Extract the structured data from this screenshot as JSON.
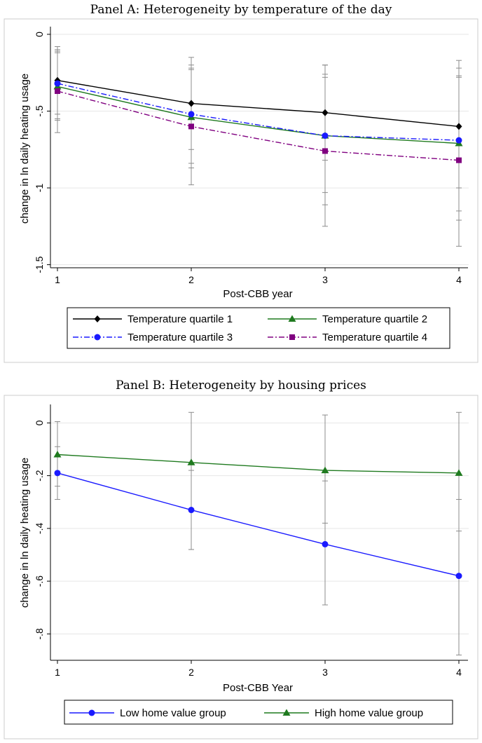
{
  "chart_data": [
    {
      "type": "line",
      "title": "Panel A: Heterogeneity by temperature of the day",
      "xlabel": "Post-CBB year",
      "ylabel": "change in ln daily heating usage",
      "x": [
        1,
        2,
        3,
        4
      ],
      "xticks": [
        1,
        2,
        3,
        4
      ],
      "xtick_labels": [
        "1",
        "2",
        "3",
        "4"
      ],
      "yticks": [
        0,
        -0.5,
        -1,
        -1.5
      ],
      "ytick_labels": [
        "0",
        "-.5",
        "-1",
        "-1.5"
      ],
      "ylim": [
        -1.52,
        0.05
      ],
      "legend_position": "bottom",
      "series": [
        {
          "name": "Temperature quartile 1",
          "color": "#000000",
          "dash": "",
          "marker": "diamond",
          "values": [
            -0.3,
            -0.45,
            -0.51,
            -0.6
          ],
          "ci_low": [
            -0.52,
            -0.75,
            -0.82,
            -1.0
          ],
          "ci_high": [
            -0.08,
            -0.15,
            -0.2,
            -0.17
          ]
        },
        {
          "name": "Temperature quartile 2",
          "color": "#1f7a1f",
          "dash": "",
          "marker": "triangle",
          "values": [
            -0.34,
            -0.54,
            -0.66,
            -0.71
          ],
          "ci_low": [
            -0.55,
            -0.87,
            -1.11,
            -1.21
          ],
          "ci_high": [
            -0.12,
            -0.22,
            -0.26,
            -0.27
          ]
        },
        {
          "name": "Temperature quartile 3",
          "color": "#1a1aff",
          "dash": "8 3 2 3",
          "marker": "circle",
          "values": [
            -0.32,
            -0.52,
            -0.66,
            -0.69
          ],
          "ci_low": [
            -0.56,
            -0.84,
            -1.03,
            -1.15
          ],
          "ci_high": [
            -0.1,
            -0.2,
            -0.28,
            -0.22
          ]
        },
        {
          "name": "Temperature quartile 4",
          "color": "#800080",
          "dash": "8 3 2 3",
          "marker": "square",
          "values": [
            -0.37,
            -0.6,
            -0.76,
            -0.82
          ],
          "ci_low": [
            -0.64,
            -0.98,
            -1.25,
            -1.38
          ],
          "ci_high": [
            -0.11,
            -0.23,
            -0.2,
            -0.28
          ]
        }
      ]
    },
    {
      "type": "line",
      "title": "Panel B: Heterogeneity by housing prices",
      "xlabel": "Post-CBB Year",
      "ylabel": "change in ln daily heating usage",
      "x": [
        1,
        2,
        3,
        4
      ],
      "xticks": [
        1,
        2,
        3,
        4
      ],
      "xtick_labels": [
        "1",
        "2",
        "3",
        "4"
      ],
      "yticks": [
        0,
        -0.2,
        -0.4,
        -0.6,
        -0.8
      ],
      "ytick_labels": [
        "0",
        "-.2",
        "-.4",
        "-.6",
        "-.8"
      ],
      "ylim": [
        -0.9,
        0.07
      ],
      "legend_position": "bottom",
      "series": [
        {
          "name": "Low home value group",
          "color": "#1a1aff",
          "dash": "",
          "marker": "circle",
          "values": [
            -0.19,
            -0.33,
            -0.46,
            -0.58
          ],
          "ci_low": [
            -0.29,
            -0.48,
            -0.69,
            -0.88
          ],
          "ci_high": [
            -0.09,
            -0.18,
            -0.22,
            -0.29
          ]
        },
        {
          "name": "High home value group",
          "color": "#1f7a1f",
          "dash": "",
          "marker": "triangle",
          "values": [
            -0.12,
            -0.15,
            -0.18,
            -0.19
          ],
          "ci_low": [
            -0.24,
            -0.48,
            -0.38,
            -0.41
          ],
          "ci_high": [
            0.005,
            0.04,
            0.03,
            0.04
          ]
        }
      ]
    }
  ]
}
